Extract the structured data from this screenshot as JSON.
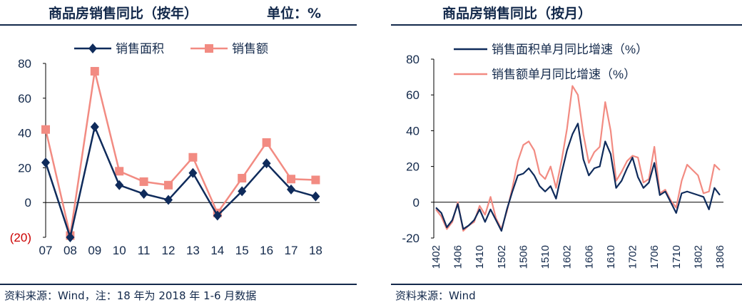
{
  "colors": {
    "navy": "#0f2b5b",
    "salmon": "#f28b82",
    "neg_label": "#cc0000",
    "text": "#13294b"
  },
  "left": {
    "title": "商品房销售同比（按年）",
    "unit": "单位：%",
    "source": "资料来源：Wind，注：18 年为 2018 年 1-6 月数据"
  },
  "right": {
    "title": "商品房销售同比（按月）",
    "source": "资料来源：Wind"
  },
  "chart_data": [
    {
      "type": "line",
      "categories": [
        "07",
        "08",
        "09",
        "10",
        "11",
        "12",
        "13",
        "14",
        "15",
        "16",
        "17",
        "18"
      ],
      "series": [
        {
          "name": "销售面积",
          "values": [
            23,
            -20,
            43.5,
            10,
            5,
            1.5,
            17,
            -7.5,
            6.5,
            22.5,
            7.5,
            3.5
          ]
        },
        {
          "name": "销售额",
          "values": [
            42,
            -19,
            75.5,
            18,
            12,
            10,
            26,
            -6,
            14,
            34.5,
            13.5,
            13
          ]
        }
      ],
      "y_ticks": [
        "80",
        "60",
        "40",
        "20",
        "0",
        "(20)"
      ],
      "ylim": [
        -20,
        80
      ],
      "legend": "top"
    },
    {
      "type": "line",
      "x": [
        "1402",
        "1403",
        "1404",
        "1405",
        "1406",
        "1407",
        "1408",
        "1409",
        "1410",
        "1411",
        "1412",
        "1501",
        "1502",
        "1503",
        "1504",
        "1505",
        "1506",
        "1507",
        "1508",
        "1509",
        "1510",
        "1511",
        "1512",
        "1601",
        "1602",
        "1603",
        "1604",
        "1605",
        "1606",
        "1607",
        "1608",
        "1609",
        "1610",
        "1611",
        "1612",
        "1701",
        "1702",
        "1703",
        "1704",
        "1705",
        "1706",
        "1707",
        "1708",
        "1709",
        "1710",
        "1711",
        "1712",
        "1801",
        "1802",
        "1803",
        "1804",
        "1805",
        "1806"
      ],
      "x_ticks": [
        "1402",
        "1406",
        "1410",
        "1502",
        "1506",
        "1510",
        "1602",
        "1606",
        "1610",
        "1702",
        "1706",
        "1710",
        "1802",
        "1806"
      ],
      "series": [
        {
          "name": "销售面积单月同比增速（%）",
          "values": [
            -3,
            -6,
            -14,
            -10,
            -1,
            -15,
            -13,
            -10,
            -4,
            -11,
            -4,
            -10,
            -16,
            -4,
            6,
            15,
            16,
            19,
            15,
            9,
            6,
            9,
            2,
            16,
            29,
            38,
            44,
            24,
            15,
            19,
            20,
            34,
            27,
            8,
            12,
            19,
            25,
            14,
            8,
            11,
            22,
            4,
            6,
            0,
            -6,
            5,
            6,
            5,
            4,
            3,
            -4,
            8,
            4
          ]
        },
        {
          "name": "销售额单月同比增速（%）",
          "values": [
            -4,
            -8,
            -15,
            -11,
            0,
            -16,
            -13,
            -11,
            -2,
            -7,
            3,
            -9,
            -15,
            -5,
            8,
            23,
            32,
            34,
            29,
            16,
            13,
            20,
            8,
            23,
            41,
            65,
            60,
            38,
            22,
            28,
            31,
            56,
            40,
            12,
            17,
            23,
            26,
            25,
            11,
            13,
            31,
            5,
            7,
            1,
            -3,
            12,
            21,
            18,
            15,
            5,
            6,
            21,
            18
          ]
        }
      ],
      "y_ticks": [
        "80",
        "60",
        "40",
        "20",
        "0",
        "-20"
      ],
      "ylim": [
        -20,
        80
      ],
      "legend": "top"
    }
  ]
}
